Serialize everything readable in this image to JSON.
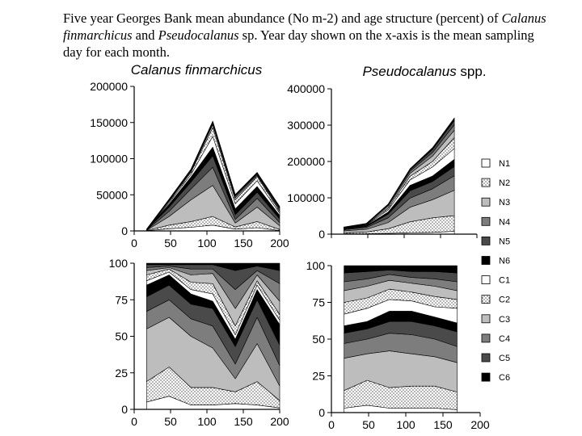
{
  "caption": {
    "part1": "Five year Georges Bank mean abundance (No m-2) and age structure (percent) of ",
    "species1": "Calanus finmarchicus",
    "part2": " and ",
    "species2": "Pseudocalanus",
    "part3": " sp. Year day shown on the x-axis is the mean sampling day for each month."
  },
  "legend": [
    "N1",
    "N2",
    "N3",
    "N4",
    "N5",
    "N6",
    "C1",
    "C2",
    "C3",
    "C4",
    "C5",
    "C6"
  ],
  "stage_colors": {
    "C6": "#000000",
    "C5": "#4a4a4a",
    "C4": "#7d7d7d",
    "C3": "#bdbdbd",
    "C2": "dots",
    "C1": "#ffffff",
    "N6": "#000000",
    "N5": "#4a4a4a",
    "N4": "#7d7d7d",
    "N3": "#bdbdbd",
    "N2": "dots",
    "N1": "#ffffff"
  },
  "chart_data": [
    {
      "id": "calanus-abundance",
      "type": "area",
      "stacked": true,
      "title": "Calanus finmarchicus",
      "x": [
        17,
        48,
        78,
        108,
        139,
        169,
        200
      ],
      "xlim": [
        0,
        200
      ],
      "xticks": [
        0,
        50,
        100,
        150,
        200
      ],
      "ylim": [
        0,
        200000
      ],
      "yticks": [
        0,
        50000,
        100000,
        150000,
        200000
      ],
      "series": [
        {
          "stage": "C1",
          "values": [
            300,
            3000,
            5000,
            8000,
            2500,
            4500,
            500
          ]
        },
        {
          "stage": "C2",
          "values": [
            300,
            5000,
            8000,
            12000,
            3000,
            8500,
            1500
          ]
        },
        {
          "stage": "C3",
          "values": [
            300,
            12000,
            30000,
            43000,
            5500,
            20000,
            5000
          ]
        },
        {
          "stage": "C4",
          "values": [
            200,
            7000,
            15000,
            25000,
            5000,
            12000,
            4500
          ]
        },
        {
          "stage": "C5",
          "values": [
            200,
            6000,
            9500,
            16000,
            6500,
            8500,
            5000
          ]
        },
        {
          "stage": "C6",
          "values": [
            300,
            4000,
            7000,
            12000,
            8000,
            8000,
            5000
          ]
        },
        {
          "stage": "N1",
          "values": [
            200,
            2000,
            3500,
            15000,
            7000,
            8000,
            3000
          ]
        },
        {
          "stage": "N2",
          "values": [
            200,
            2000,
            3000,
            12000,
            5500,
            6000,
            2500
          ]
        },
        {
          "stage": "N3",
          "values": [
            100,
            1000,
            1500,
            4000,
            3000,
            1500,
            2000
          ]
        },
        {
          "stage": "N4",
          "values": [
            100,
            1000,
            1500,
            2000,
            2000,
            1500,
            2000
          ]
        },
        {
          "stage": "N5",
          "values": [
            100,
            500,
            1000,
            1500,
            1500,
            1000,
            1500
          ]
        },
        {
          "stage": "N6",
          "values": [
            0,
            500,
            500,
            1500,
            1000,
            1500,
            1500
          ]
        }
      ]
    },
    {
      "id": "pseudocalanus-abundance",
      "type": "area",
      "stacked": true,
      "title": "Pseudocalanus spp.",
      "x": [
        17,
        48,
        78,
        108,
        139,
        169
      ],
      "xlim": [
        0,
        200
      ],
      "ylim": [
        0,
        400000
      ],
      "yticks": [
        0,
        100000,
        200000,
        300000,
        400000
      ],
      "series": [
        {
          "stage": "C1",
          "values": [
            1000,
            1000,
            2000,
            4000,
            5000,
            8000
          ]
        },
        {
          "stage": "C2",
          "values": [
            3000,
            5000,
            13000,
            30000,
            40000,
            43000
          ]
        },
        {
          "stage": "C3",
          "values": [
            5000,
            7000,
            17000,
            40000,
            50000,
            70000
          ]
        },
        {
          "stage": "C4",
          "values": [
            3000,
            5000,
            13000,
            25000,
            30000,
            40000
          ]
        },
        {
          "stage": "C5",
          "values": [
            2000,
            3000,
            10000,
            20000,
            20000,
            25000
          ]
        },
        {
          "stage": "C6",
          "values": [
            1000,
            2000,
            6000,
            15000,
            15000,
            20000
          ]
        },
        {
          "stage": "N1",
          "values": [
            1000,
            1500,
            6000,
            15000,
            25000,
            30000
          ]
        },
        {
          "stage": "N2",
          "values": [
            1000,
            1500,
            5000,
            10000,
            15000,
            30000
          ]
        },
        {
          "stage": "N3",
          "values": [
            1000,
            1500,
            5000,
            8000,
            15000,
            20000
          ]
        },
        {
          "stage": "N4",
          "values": [
            500,
            1000,
            3000,
            6000,
            10000,
            15000
          ]
        },
        {
          "stage": "N5",
          "values": [
            500,
            500,
            2000,
            4000,
            8000,
            12000
          ]
        },
        {
          "stage": "N6",
          "values": [
            500,
            500,
            1000,
            3000,
            5000,
            7000
          ]
        }
      ]
    },
    {
      "id": "calanus-percent",
      "type": "area",
      "stacked": true,
      "x": [
        17,
        48,
        78,
        108,
        139,
        169,
        200
      ],
      "xlim": [
        0,
        200
      ],
      "xticks": [
        0,
        50,
        100,
        150,
        200
      ],
      "ylim": [
        0,
        100
      ],
      "yticks": [
        0,
        25,
        50,
        75,
        100
      ],
      "series": [
        {
          "stage": "C1",
          "values": [
            5,
            9,
            3,
            3,
            4,
            3,
            1
          ]
        },
        {
          "stage": "C2",
          "values": [
            14,
            20,
            12,
            12,
            8,
            16,
            5
          ]
        },
        {
          "stage": "C3",
          "values": [
            36,
            34,
            35,
            27,
            9,
            26,
            10
          ]
        },
        {
          "stage": "C4",
          "values": [
            12,
            12,
            12,
            15,
            10,
            18,
            14
          ]
        },
        {
          "stage": "C5",
          "values": [
            10,
            10,
            10,
            12,
            12,
            12,
            14
          ]
        },
        {
          "stage": "C6",
          "values": [
            8,
            7,
            7,
            5,
            5,
            7,
            14
          ]
        },
        {
          "stage": "N1",
          "values": [
            3,
            2,
            3,
            5,
            3,
            3,
            3
          ]
        },
        {
          "stage": "N2",
          "values": [
            4,
            2,
            5,
            7,
            6,
            3,
            4
          ]
        },
        {
          "stage": "N3",
          "values": [
            3,
            1,
            5,
            7,
            12,
            4,
            9
          ]
        },
        {
          "stage": "N4",
          "values": [
            2,
            1,
            4,
            3,
            13,
            3,
            12
          ]
        },
        {
          "stage": "N5",
          "values": [
            2,
            1,
            3,
            3,
            13,
            3,
            9
          ]
        },
        {
          "stage": "N6",
          "values": [
            1,
            1,
            1,
            1,
            5,
            2,
            5
          ]
        }
      ]
    },
    {
      "id": "pseudocalanus-percent",
      "type": "area",
      "stacked": true,
      "x": [
        17,
        48,
        78,
        108,
        139,
        169
      ],
      "xlim": [
        0,
        200
      ],
      "xticks": [
        0,
        50,
        100,
        150,
        200
      ],
      "ylim": [
        0,
        100
      ],
      "yticks": [
        0,
        25,
        50,
        75,
        100
      ],
      "series": [
        {
          "stage": "C1",
          "values": [
            3,
            5,
            3,
            3,
            3,
            2
          ]
        },
        {
          "stage": "C2",
          "values": [
            12,
            17,
            14,
            15,
            15,
            12
          ]
        },
        {
          "stage": "C3",
          "values": [
            22,
            18,
            25,
            22,
            20,
            20
          ]
        },
        {
          "stage": "C4",
          "values": [
            10,
            10,
            12,
            13,
            12,
            11
          ]
        },
        {
          "stage": "C5",
          "values": [
            7,
            7,
            8,
            9,
            9,
            10
          ]
        },
        {
          "stage": "C6",
          "values": [
            5,
            5,
            7,
            7,
            6,
            6
          ]
        },
        {
          "stage": "N1",
          "values": [
            8,
            9,
            8,
            7,
            7,
            10
          ]
        },
        {
          "stage": "N2",
          "values": [
            8,
            7,
            7,
            6,
            7,
            6
          ]
        },
        {
          "stage": "N3",
          "values": [
            8,
            8,
            6,
            6,
            7,
            6
          ]
        },
        {
          "stage": "N4",
          "values": [
            6,
            5,
            4,
            4,
            5,
            6
          ]
        },
        {
          "stage": "N5",
          "values": [
            6,
            5,
            3,
            4,
            5,
            6
          ]
        },
        {
          "stage": "N6",
          "values": [
            5,
            4,
            3,
            4,
            4,
            5
          ]
        }
      ]
    }
  ]
}
